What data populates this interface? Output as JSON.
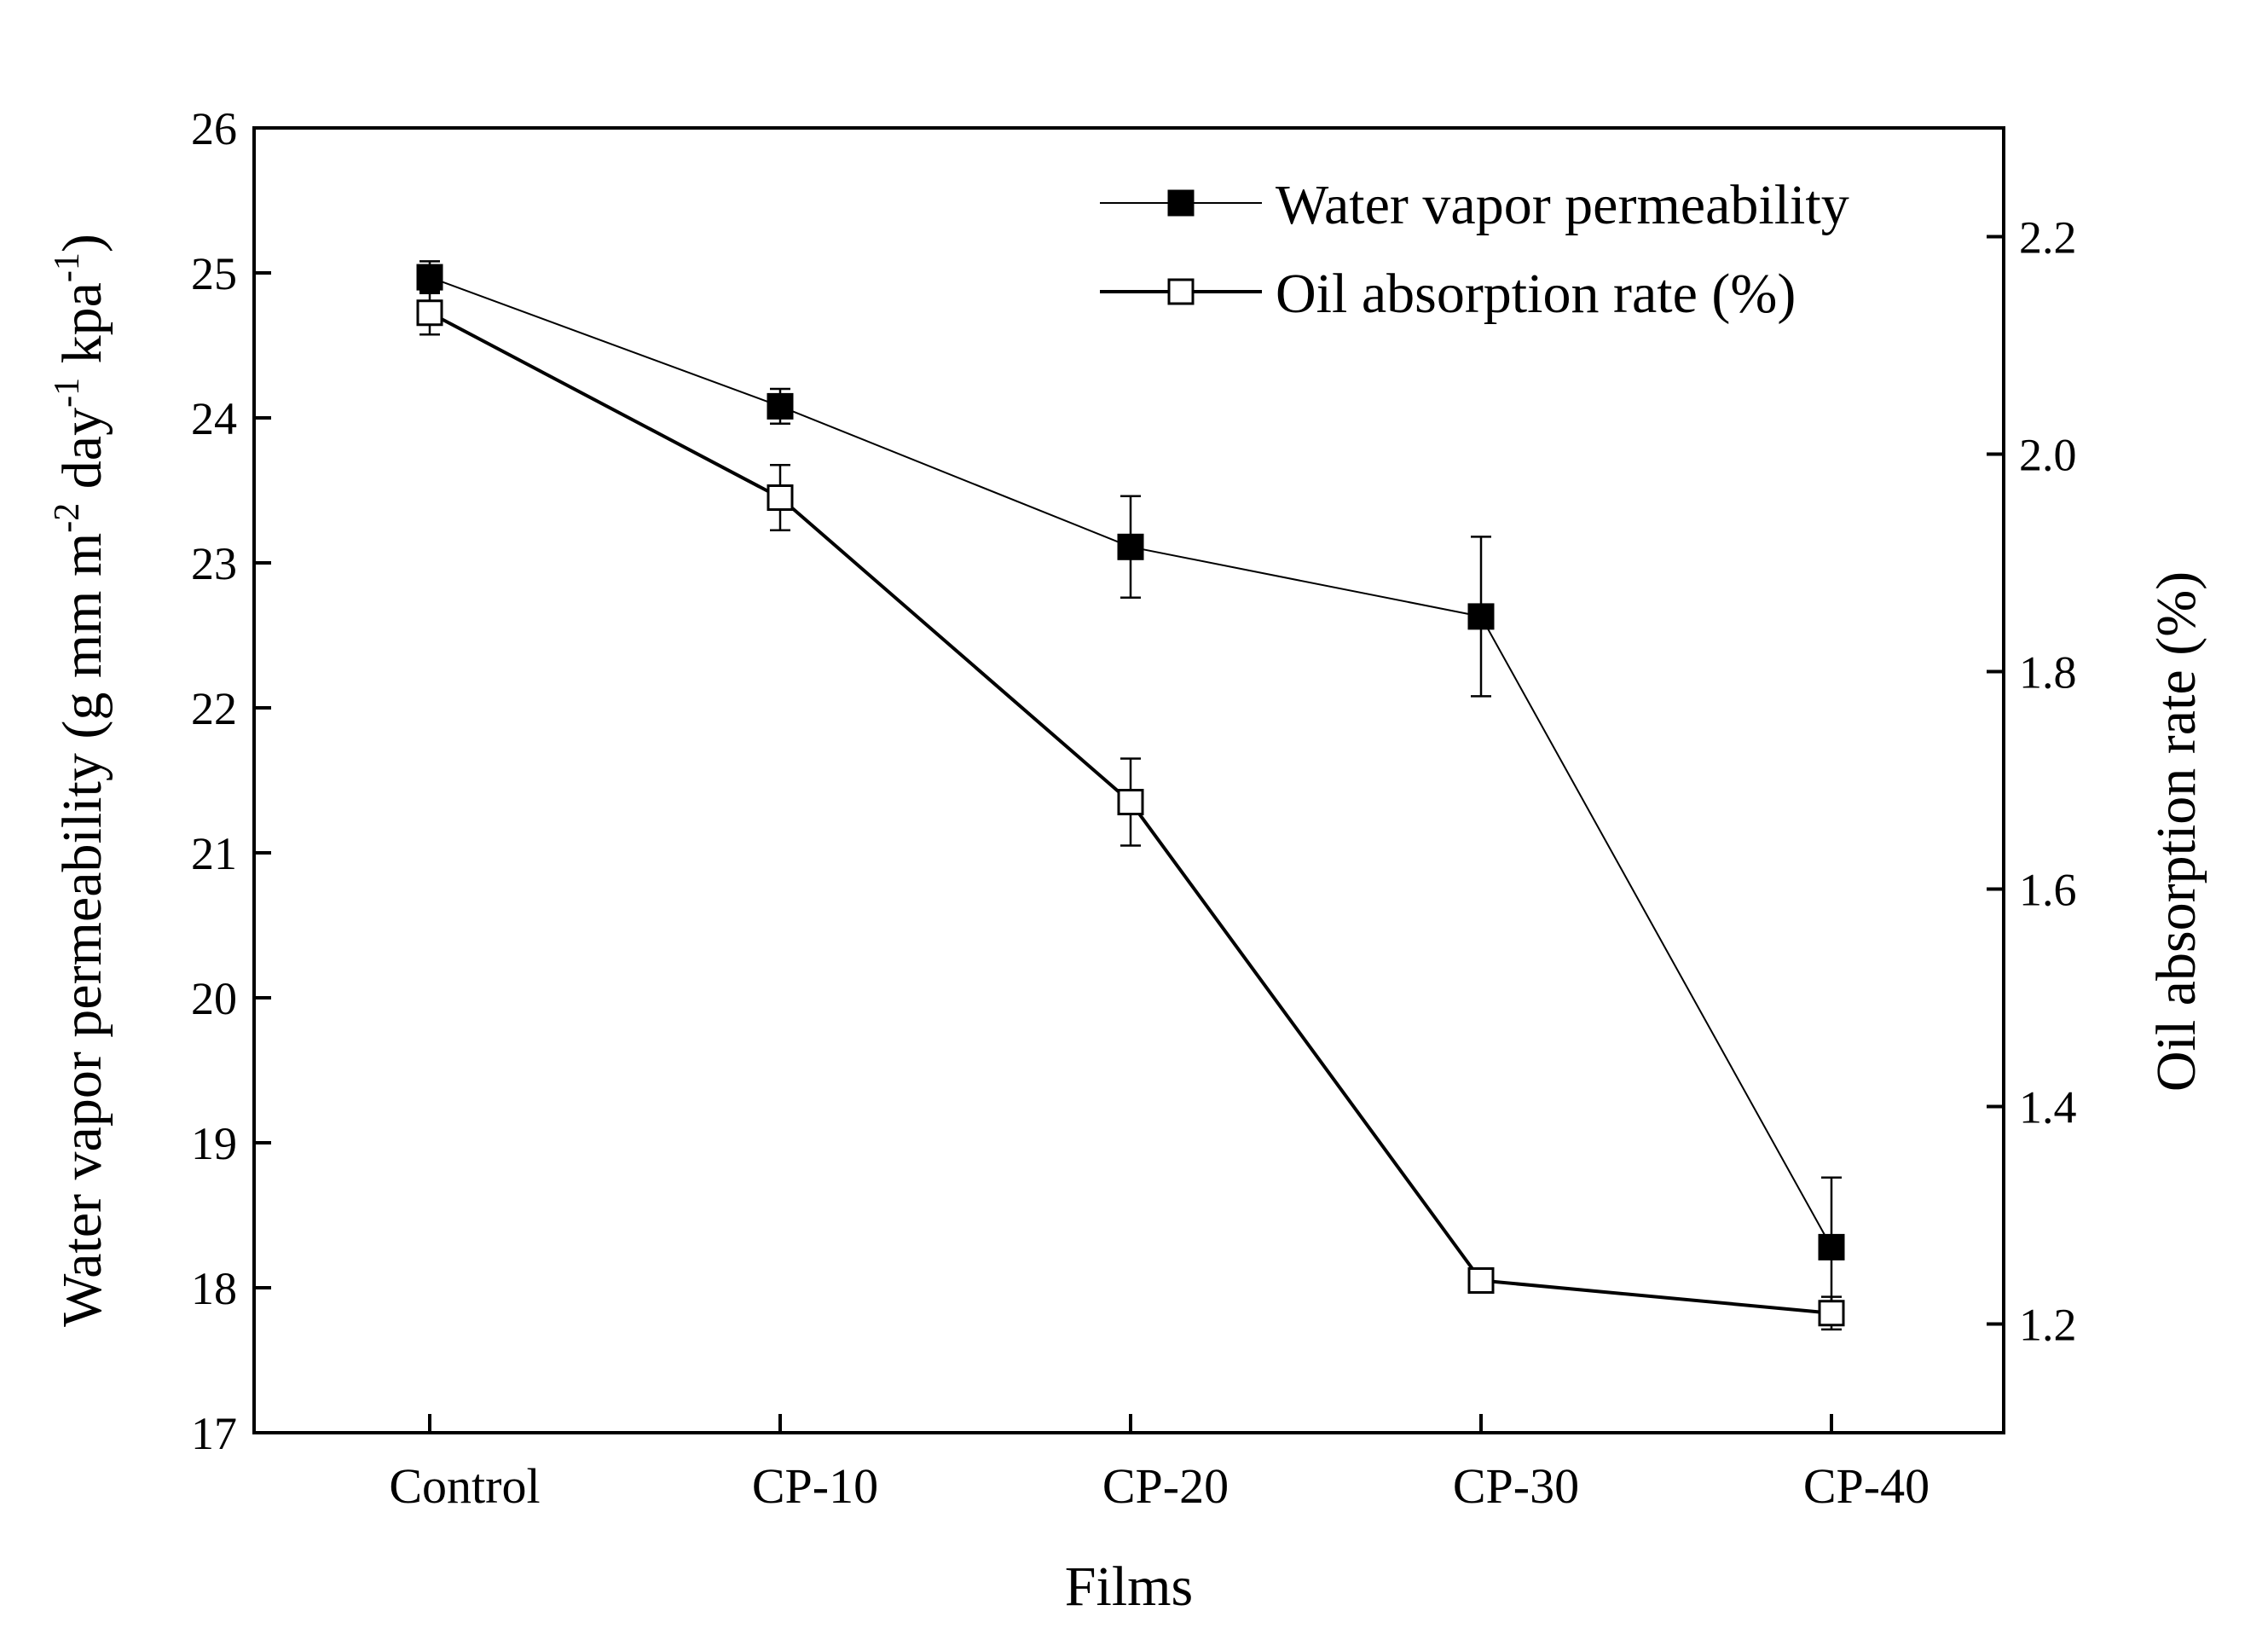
{
  "chart_data": {
    "type": "line",
    "title": "",
    "xlabel": "Films",
    "ylabel": {
      "main": "Water vapor permeability (g mm m",
      "sup1": "-2",
      "mid1": " day",
      "sup2": "-1",
      "mid2": " kpa",
      "sup3": "-1",
      "end": ")"
    },
    "y2label": "Oil absorption rate (%)",
    "categories": [
      "Control",
      "CP-10",
      "CP-20",
      "CP-30",
      "CP-40"
    ],
    "ylim": [
      17,
      26
    ],
    "y2lim": [
      1.1,
      2.3
    ],
    "yticks": [
      17,
      18,
      19,
      20,
      21,
      22,
      23,
      24,
      25,
      26
    ],
    "y2ticks": [
      1.2,
      1.4,
      1.6,
      1.8,
      2.0,
      2.2
    ],
    "ytick_labels": [
      "17",
      "18",
      "19",
      "20",
      "21",
      "22",
      "23",
      "24",
      "25",
      "26"
    ],
    "y2tick_labels": [
      "1.2",
      "1.4",
      "1.6",
      "1.8",
      "2.0",
      "2.2"
    ],
    "legend_position": "top-right",
    "grid": false,
    "series": [
      {
        "name": "Water vapor permeability",
        "axis": "left",
        "marker": "filled-square",
        "color": "#000000",
        "values": [
          24.97,
          24.08,
          23.11,
          22.63,
          18.28
        ],
        "errors": [
          0.11,
          0.12,
          0.35,
          0.55,
          0.48
        ]
      },
      {
        "name": "Oil absorption rate (%)",
        "axis": "right",
        "marker": "open-square",
        "color": "#000000",
        "values": [
          2.13,
          1.96,
          1.68,
          1.24,
          1.21
        ],
        "errors": [
          0.02,
          0.03,
          0.04,
          0.005,
          0.015
        ]
      }
    ]
  }
}
